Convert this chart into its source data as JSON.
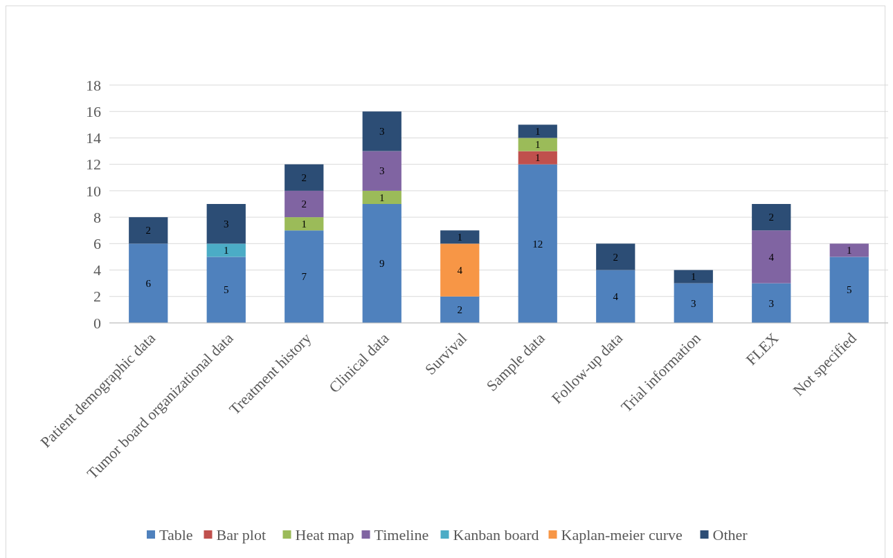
{
  "chart_data": {
    "type": "bar",
    "stacked": true,
    "data_labels": true,
    "grid": "y",
    "legend": "bottom",
    "categories": [
      "Patient demographic data",
      "Tumor board organizational data",
      "Treatment history",
      "Clinical data",
      "Survival",
      "Sample data",
      "Follow-up data",
      "Trial information",
      "FLEX",
      "Not specified"
    ],
    "ylim": [
      0,
      18
    ],
    "yticks": [
      0,
      2,
      4,
      6,
      8,
      10,
      12,
      14,
      16,
      18
    ],
    "series": [
      {
        "name": "Table",
        "color": "#4f81bd",
        "values": [
          6,
          5,
          7,
          9,
          2,
          12,
          4,
          3,
          3,
          5
        ]
      },
      {
        "name": "Bar plot",
        "color": "#c0504d",
        "values": [
          null,
          null,
          null,
          null,
          null,
          1,
          null,
          null,
          null,
          null
        ]
      },
      {
        "name": "Heat map",
        "color": "#9bbb59",
        "values": [
          null,
          null,
          1,
          1,
          null,
          1,
          null,
          null,
          null,
          null
        ]
      },
      {
        "name": "Timeline",
        "color": "#8064a2",
        "values": [
          null,
          null,
          2,
          3,
          null,
          null,
          null,
          null,
          4,
          1
        ]
      },
      {
        "name": "Kanban board",
        "color": "#4bacc6",
        "values": [
          null,
          1,
          null,
          null,
          null,
          null,
          null,
          null,
          null,
          null
        ]
      },
      {
        "name": "Kaplan-meier curve",
        "color": "#f79646",
        "values": [
          null,
          null,
          null,
          null,
          4,
          null,
          null,
          null,
          null,
          null
        ]
      },
      {
        "name": "Other",
        "color": "#2c4d75",
        "values": [
          2,
          3,
          2,
          3,
          1,
          1,
          2,
          1,
          2,
          null
        ]
      }
    ]
  }
}
